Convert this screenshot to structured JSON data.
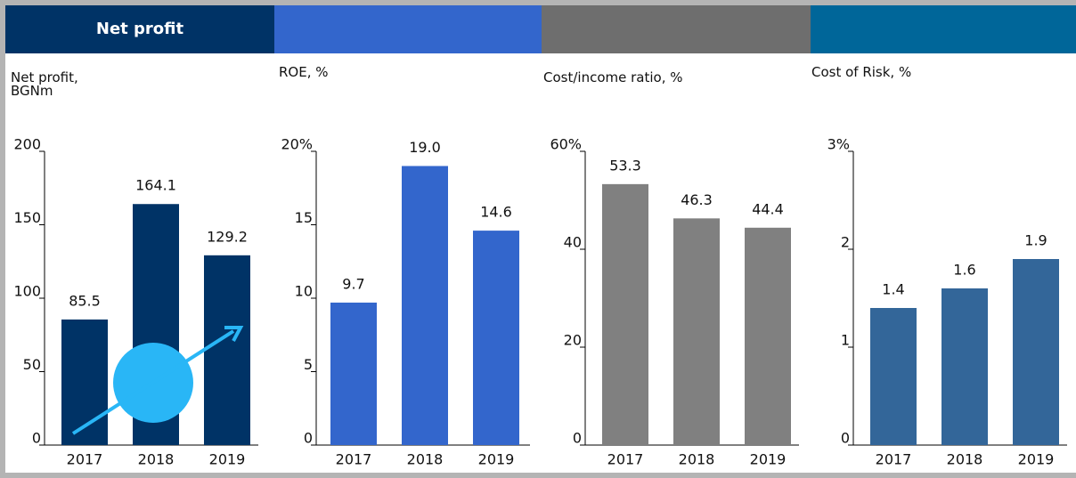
{
  "header_tab": "Net profit",
  "chart_data": [
    {
      "type": "bar",
      "title": "Net profit,\nBGNm",
      "categories": [
        "2017",
        "2018",
        "2019"
      ],
      "values": [
        85.5,
        164.1,
        129.2
      ],
      "color": "#003366",
      "ylim": [
        0,
        200
      ],
      "yticks": [
        0,
        50,
        100,
        150,
        200
      ]
    },
    {
      "type": "bar",
      "title": "ROE, %",
      "categories": [
        "2017",
        "2018",
        "2019"
      ],
      "values": [
        9.7,
        19,
        14.6
      ],
      "value_labels": [
        "9.7",
        "19.0",
        "14.6"
      ],
      "color": "#3366cc",
      "ylim": [
        0,
        20
      ],
      "yticks": [
        0,
        5,
        10,
        15,
        {
          "value": 20,
          "label": "20%"
        }
      ]
    },
    {
      "type": "bar",
      "title": "Cost/income ratio, %",
      "categories": [
        "2017",
        "2018",
        "2019"
      ],
      "values": [
        53.3,
        46.3,
        44.4
      ],
      "color": "#808080",
      "ylim": [
        0,
        60
      ],
      "yticks": [
        0,
        20,
        40,
        {
          "value": 60,
          "label": "60%"
        }
      ]
    },
    {
      "type": "bar",
      "title": "Cost of Risk, %",
      "categories": [
        "2017",
        "2018",
        "2019"
      ],
      "values": [
        1.4,
        1.6,
        1.9
      ],
      "color": "#336699",
      "ylim": [
        0,
        3
      ],
      "yticks": [
        0,
        1,
        2,
        {
          "value": 3,
          "label": "3%"
        }
      ]
    }
  ]
}
